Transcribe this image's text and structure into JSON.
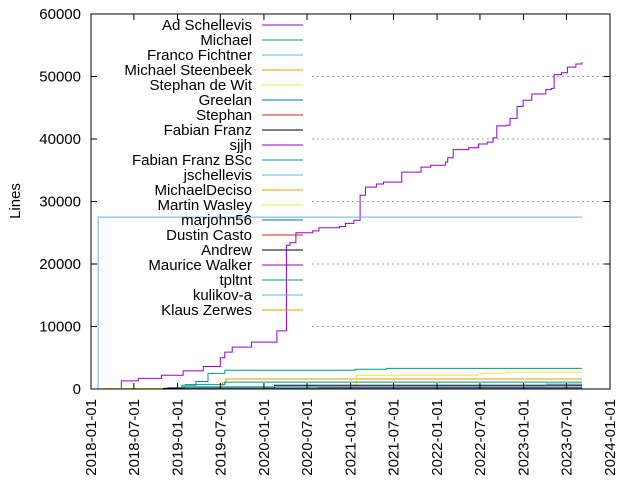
{
  "chart_data": {
    "type": "line",
    "title": "",
    "xlabel": "",
    "ylabel": "Lines",
    "xlim": [
      "2018-01-01",
      "2024-01-01"
    ],
    "ylim": [
      0,
      60000
    ],
    "x_ticks": [
      "2018-01-01",
      "2018-07-01",
      "2019-01-01",
      "2019-07-01",
      "2020-01-01",
      "2020-07-01",
      "2021-01-01",
      "2021-07-01",
      "2022-01-01",
      "2022-07-01",
      "2023-01-01",
      "2023-07-01",
      "2024-01-01"
    ],
    "y_ticks": [
      0,
      10000,
      20000,
      30000,
      40000,
      50000,
      60000
    ],
    "grid": "y-dashed",
    "legend_position": "top-left",
    "step": true,
    "series": [
      {
        "name": "Ad Schellevis",
        "color": "#9400d3",
        "points": [
          [
            "2018-05-08",
            0
          ],
          [
            "2018-05-09",
            1300
          ],
          [
            "2018-07-20",
            1700
          ],
          [
            "2018-10-25",
            2200
          ],
          [
            "2019-01-25",
            2900
          ],
          [
            "2019-04-20",
            3600
          ],
          [
            "2019-07-01",
            5000
          ],
          [
            "2019-07-20",
            5900
          ],
          [
            "2019-08-20",
            6700
          ],
          [
            "2019-11-10",
            7500
          ],
          [
            "2020-02-25",
            9300
          ],
          [
            "2020-04-05",
            23000
          ],
          [
            "2020-04-20",
            23400
          ],
          [
            "2020-05-15",
            25000
          ],
          [
            "2020-07-25",
            25300
          ],
          [
            "2020-08-20",
            25800
          ],
          [
            "2020-11-15",
            26000
          ],
          [
            "2020-12-10",
            26500
          ],
          [
            "2021-01-15",
            27000
          ],
          [
            "2021-02-10",
            31000
          ],
          [
            "2021-03-05",
            32300
          ],
          [
            "2021-04-20",
            32800
          ],
          [
            "2021-05-20",
            33100
          ],
          [
            "2021-08-05",
            34700
          ],
          [
            "2021-10-25",
            35500
          ],
          [
            "2021-12-05",
            35800
          ],
          [
            "2022-02-05",
            36300
          ],
          [
            "2022-02-15",
            37000
          ],
          [
            "2022-03-10",
            38300
          ],
          [
            "2022-05-15",
            38600
          ],
          [
            "2022-06-25",
            39200
          ],
          [
            "2022-08-01",
            39500
          ],
          [
            "2022-08-25",
            40200
          ],
          [
            "2022-09-10",
            42100
          ],
          [
            "2022-10-20",
            42200
          ],
          [
            "2022-11-05",
            43300
          ],
          [
            "2022-12-05",
            45200
          ],
          [
            "2022-12-30",
            46200
          ],
          [
            "2023-02-05",
            47200
          ],
          [
            "2023-04-05",
            47900
          ],
          [
            "2023-04-28",
            48100
          ],
          [
            "2023-05-10",
            50300
          ],
          [
            "2023-06-10",
            50600
          ],
          [
            "2023-07-05",
            51500
          ],
          [
            "2023-08-10",
            52000
          ],
          [
            "2023-09-05",
            52300
          ]
        ]
      },
      {
        "name": "Michael",
        "color": "#009e73",
        "points": [
          [
            "2018-11-01",
            0
          ],
          [
            "2019-01-20",
            600
          ],
          [
            "2019-03-20",
            1200
          ],
          [
            "2019-05-10",
            2500
          ],
          [
            "2019-07-20",
            3000
          ],
          [
            "2021-01-20",
            3150
          ],
          [
            "2021-06-01",
            3300
          ],
          [
            "2023-09-05",
            3300
          ]
        ]
      },
      {
        "name": "Franco Fichtner",
        "color": "#56b4e9",
        "points": [
          [
            "2018-01-30",
            0
          ],
          [
            "2018-01-31",
            27500
          ],
          [
            "2023-09-05",
            27500
          ]
        ]
      },
      {
        "name": "Michael Steenbeek",
        "color": "#e69f00",
        "points": [
          [
            "2019-03-01",
            300
          ],
          [
            "2019-07-10",
            1000
          ],
          [
            "2019-07-25",
            1600
          ],
          [
            "2023-09-05",
            1600
          ]
        ]
      },
      {
        "name": "Stephan de Wit",
        "color": "#f0e442",
        "points": [
          [
            "2018-02-15",
            100
          ],
          [
            "2021-01-20",
            300
          ],
          [
            "2021-01-25",
            2200
          ],
          [
            "2022-06-20",
            2400
          ],
          [
            "2022-07-10",
            2550
          ],
          [
            "2022-10-25",
            2700
          ],
          [
            "2023-09-05",
            2700
          ]
        ]
      },
      {
        "name": "Greelan",
        "color": "#0072b2",
        "points": [
          [
            "2018-11-20",
            200
          ],
          [
            "2019-02-01",
            300
          ],
          [
            "2023-09-05",
            400
          ]
        ]
      },
      {
        "name": "Stephan",
        "color": "#e51e10",
        "points": [
          [
            "2020-08-15",
            150
          ],
          [
            "2023-09-05",
            150
          ]
        ]
      },
      {
        "name": "Fabian Franz",
        "color": "#000000",
        "points": [
          [
            "2018-11-01",
            100
          ],
          [
            "2020-02-15",
            600
          ],
          [
            "2023-09-05",
            600
          ]
        ]
      },
      {
        "name": "sjjh",
        "color": "#9400d3",
        "points": [
          [
            "2020-09-01",
            100
          ],
          [
            "2023-09-05",
            100
          ]
        ]
      },
      {
        "name": "Fabian Franz BSc",
        "color": "#009e73",
        "points": [
          [
            "2019-02-01",
            700
          ],
          [
            "2019-07-20",
            1100
          ],
          [
            "2023-09-05",
            1100
          ]
        ]
      },
      {
        "name": "jschellevis",
        "color": "#56b4e9",
        "points": [
          [
            "2019-01-15",
            400
          ],
          [
            "2023-04-05",
            800
          ],
          [
            "2023-09-05",
            800
          ]
        ]
      },
      {
        "name": "MichaelDeciso",
        "color": "#e69f00",
        "points": [
          [
            "2019-06-01",
            50
          ],
          [
            "2023-09-05",
            50
          ]
        ]
      },
      {
        "name": "Martin Wasley",
        "color": "#f0e442",
        "points": [
          [
            "2019-02-01",
            50
          ],
          [
            "2023-09-05",
            50
          ]
        ]
      },
      {
        "name": "marjohn56",
        "color": "#0072b2",
        "points": [
          [
            "2019-04-01",
            60
          ],
          [
            "2023-09-05",
            60
          ]
        ]
      },
      {
        "name": "Dustin Casto",
        "color": "#e51e10",
        "points": [
          [
            "2020-10-01",
            40
          ],
          [
            "2023-09-05",
            40
          ]
        ]
      },
      {
        "name": "Andrew",
        "color": "#000000",
        "points": [
          [
            "2020-01-01",
            30
          ],
          [
            "2023-09-05",
            30
          ]
        ]
      },
      {
        "name": "Maurice Walker",
        "color": "#9400d3",
        "points": [
          [
            "2020-09-10",
            20
          ],
          [
            "2023-09-05",
            20
          ]
        ]
      },
      {
        "name": "tpltnt",
        "color": "#009e73",
        "points": [
          [
            "2019-01-01",
            20
          ],
          [
            "2023-09-05",
            20
          ]
        ]
      },
      {
        "name": "kulikov-a",
        "color": "#56b4e9",
        "points": [
          [
            "2020-06-01",
            20
          ],
          [
            "2023-09-05",
            20
          ]
        ]
      },
      {
        "name": "Klaus Zerwes",
        "color": "#e69f00",
        "points": [
          [
            "2019-05-01",
            10
          ],
          [
            "2023-09-05",
            10
          ]
        ]
      }
    ]
  }
}
